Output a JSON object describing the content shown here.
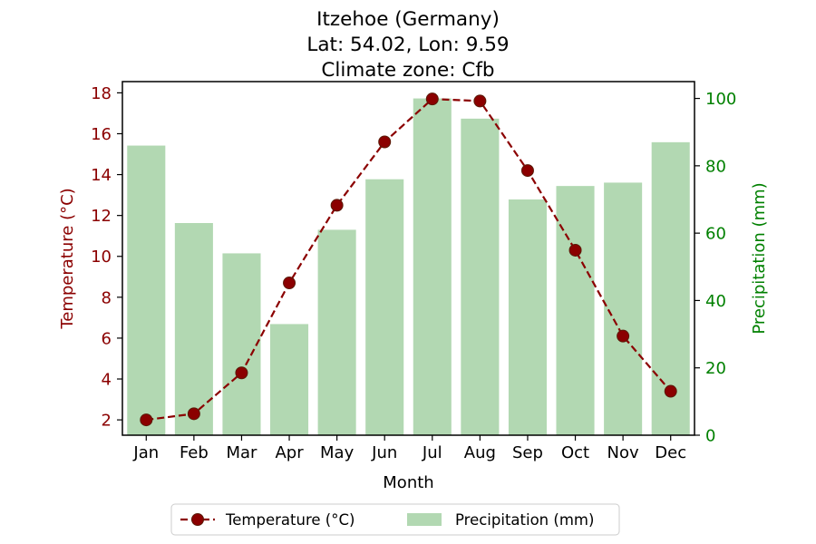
{
  "chart_data": {
    "type": "bar",
    "title_lines": [
      "Itzehoe (Germany)",
      "Lat: 54.02, Lon: 9.59",
      "Climate zone: Cfb"
    ],
    "xlabel": "Month",
    "categories": [
      "Jan",
      "Feb",
      "Mar",
      "Apr",
      "May",
      "Jun",
      "Jul",
      "Aug",
      "Sep",
      "Oct",
      "Nov",
      "Dec"
    ],
    "series": [
      {
        "name": "Temperature (°C)",
        "type": "line",
        "axis": "left",
        "color": "#8b0000",
        "values": [
          2.0,
          2.3,
          4.3,
          8.7,
          12.5,
          15.6,
          17.7,
          17.6,
          14.2,
          10.3,
          6.1,
          3.4
        ]
      },
      {
        "name": "Precipitation (mm)",
        "type": "bar",
        "axis": "right",
        "color": "#b2d8b2",
        "values": [
          86,
          63,
          54,
          33,
          61,
          76,
          100,
          94,
          70,
          74,
          75,
          87
        ]
      }
    ],
    "y_left": {
      "label": "Temperature (°C)",
      "color": "#8b0000",
      "ticks": [
        2,
        4,
        6,
        8,
        10,
        12,
        14,
        16,
        18
      ],
      "lim": [
        1.25,
        18.55
      ]
    },
    "y_right": {
      "label": "Precipitation (mm)",
      "color": "#008000",
      "ticks": [
        0,
        20,
        40,
        60,
        80,
        100
      ],
      "lim": [
        0,
        105
      ]
    },
    "legend_position": "bottom-center",
    "grid": false
  }
}
